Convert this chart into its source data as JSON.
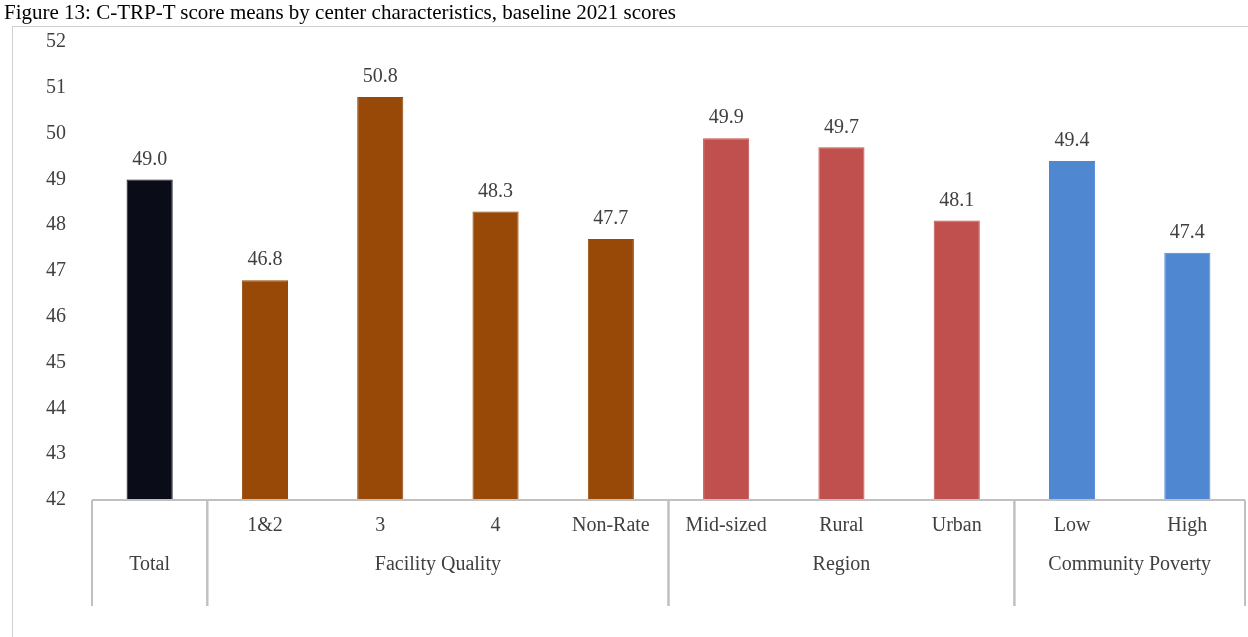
{
  "chart_data": {
    "type": "bar",
    "title": "Figure 13: C-TRP-T score means by center characteristics, baseline 2021 scores",
    "categories": [
      null,
      "1&2",
      "3",
      "4",
      "Non-Rate",
      "Mid-sized",
      "Rural",
      "Urban",
      "Low",
      "High"
    ],
    "values": [
      49.0,
      46.8,
      50.8,
      48.3,
      47.7,
      49.9,
      49.7,
      48.1,
      49.4,
      47.4
    ],
    "value_labels": [
      "49.0",
      "46.8",
      "50.8",
      "48.3",
      "47.7",
      "49.9",
      "49.7",
      "48.1",
      "49.4",
      "47.4"
    ],
    "colors": [
      "#0a0d18",
      "#984807",
      "#984807",
      "#984807",
      "#984807",
      "#c0504d",
      "#c0504d",
      "#c0504d",
      "#4f88d0",
      "#4f88d0"
    ],
    "annotations": [
      "Total",
      "Facility Quality",
      "Region",
      "Community Poverty"
    ],
    "ylim": [
      42,
      52
    ],
    "yticks": [
      42,
      43,
      44,
      45,
      46,
      47,
      48,
      49,
      50,
      51,
      52
    ],
    "grid": false,
    "legend": false
  }
}
